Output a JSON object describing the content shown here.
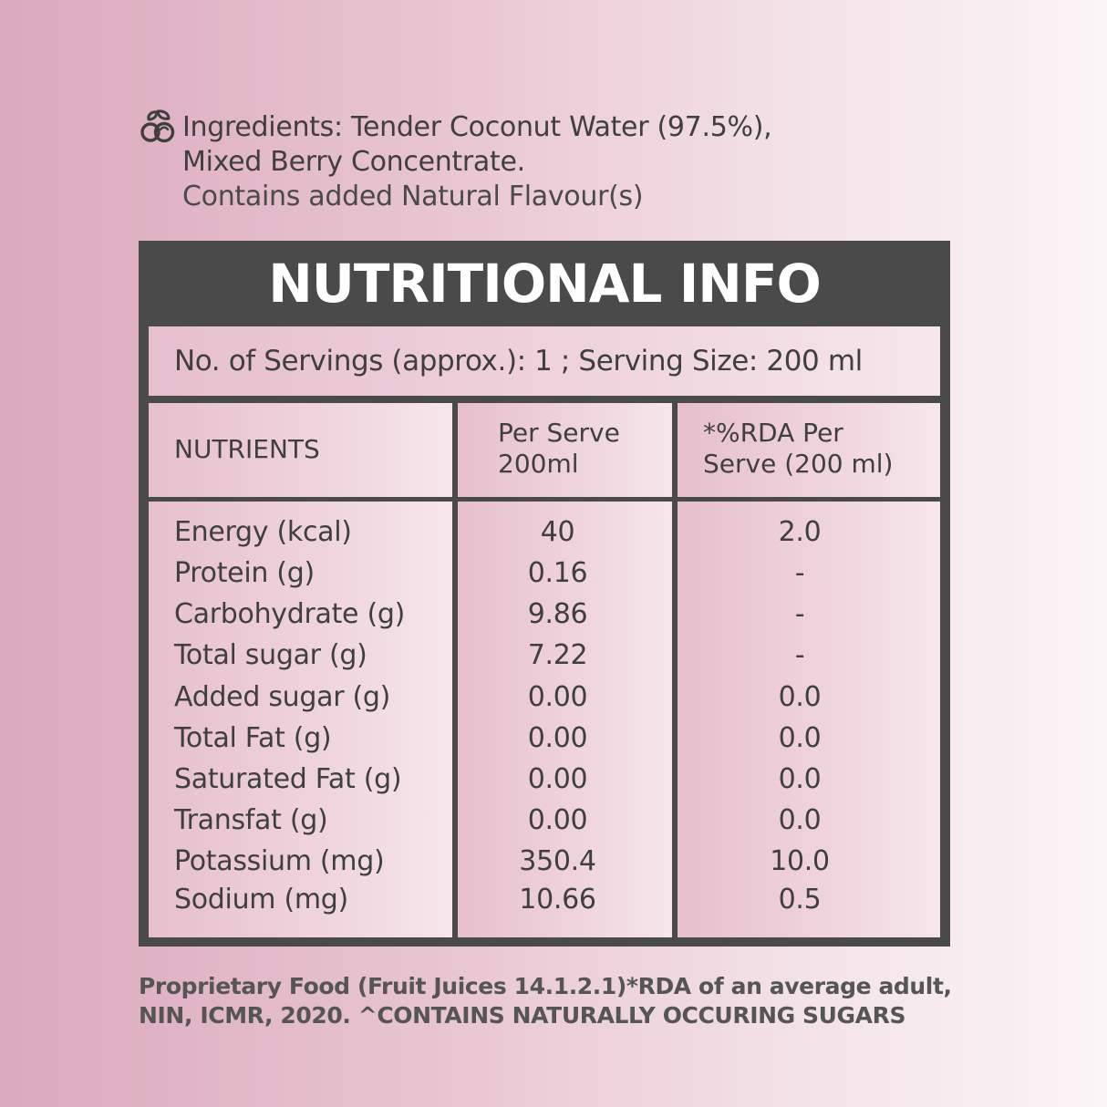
{
  "ingredients": {
    "line1": "Ingredients: Tender Coconut Water (97.5%),",
    "line2": "Mixed Berry Concentrate.",
    "line3": "Contains added Natural Flavour(s)",
    "icon": "leaf-fruit-icon"
  },
  "panel": {
    "title": "NUTRITIONAL INFO",
    "servings": "No. of Servings (approx.): 1 ; Serving Size: 200 ml",
    "headers": {
      "nutrients": "NUTRIENTS",
      "per_serve_1": "Per Serve",
      "per_serve_2": "200ml",
      "rda_1": "*%RDA Per",
      "rda_2": "Serve (200 ml)"
    },
    "rows": [
      {
        "name": "Energy (kcal)",
        "per_serve": "40",
        "rda": "2.0"
      },
      {
        "name": "Protein (g)",
        "per_serve": "0.16",
        "rda": "-"
      },
      {
        "name": "Carbohydrate (g)",
        "per_serve": "9.86",
        "rda": "-"
      },
      {
        "name": "Total sugar (g)",
        "per_serve": "7.22",
        "rda": "-"
      },
      {
        "name": "Added sugar (g)",
        "per_serve": "0.00",
        "rda": "0.0"
      },
      {
        "name": "Total Fat (g)",
        "per_serve": "0.00",
        "rda": "0.0"
      },
      {
        "name": "Saturated Fat (g)",
        "per_serve": "0.00",
        "rda": "0.0"
      },
      {
        "name": "Transfat (g)",
        "per_serve": "0.00",
        "rda": "0.0"
      },
      {
        "name": "Potassium (mg)",
        "per_serve": "350.4",
        "rda": "10.0"
      },
      {
        "name": "Sodium (mg)",
        "per_serve": "10.66",
        "rda": "0.5"
      }
    ]
  },
  "footer": {
    "line1": "Proprietary Food (Fruit Juices 14.1.2.1)*RDA of an average adult,",
    "line2": "NIN, ICMR, 2020. ^CONTAINS NATURALLY OCCURING SUGARS"
  },
  "colors": {
    "panel": "#4a4a4a",
    "text": "#3f3f3f",
    "accent_pink": "#dba9bc"
  }
}
